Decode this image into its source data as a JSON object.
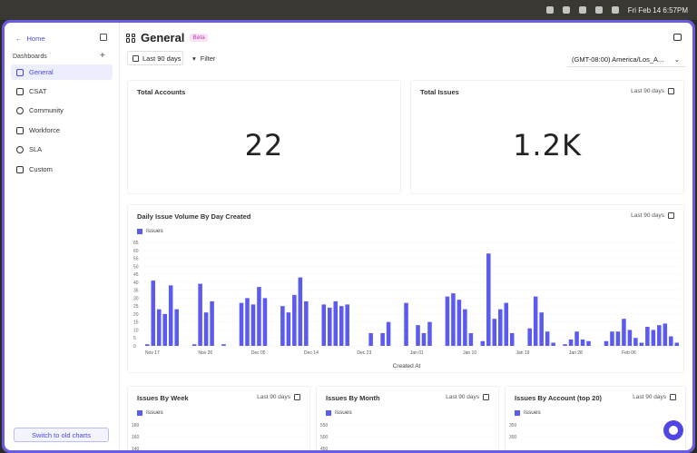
{
  "menubar": {
    "datetime": "Fri Feb 14  6:57PM"
  },
  "sidebar": {
    "home": "Home",
    "dashboards": "Dashboards",
    "items": [
      {
        "label": "General"
      },
      {
        "label": "CSAT"
      },
      {
        "label": "Community"
      },
      {
        "label": "Workforce"
      },
      {
        "label": "SLA"
      },
      {
        "label": "Custom"
      }
    ],
    "switch": "Switch to old charts"
  },
  "header": {
    "title": "General",
    "badge": "Beta",
    "date_range": "Last 90 days",
    "filter": "Filter",
    "timezone": "(GMT-08:00) America/Los_A..."
  },
  "cards": {
    "accounts": {
      "title": "Total Accounts",
      "value": "22"
    },
    "issues": {
      "title": "Total Issues",
      "value": "1.2K",
      "range": "Last 90 days"
    }
  },
  "colors": {
    "accent": "#5b5bf0",
    "window": "#6a5ce0"
  },
  "chart_data": [
    {
      "type": "bar",
      "title": "Daily Issue Volume By Day Created",
      "range": "Last 90 days",
      "legend": "Issues",
      "xlabel": "Created At",
      "ylim": [
        0,
        65
      ],
      "yticks": [
        0,
        5,
        10,
        15,
        20,
        25,
        30,
        35,
        40,
        45,
        50,
        55,
        60,
        65
      ],
      "xticks": [
        "Nov 17",
        "Nov 26",
        "Dec 05",
        "Dec 14",
        "Dec 23",
        "Jan 01",
        "Jan 10",
        "Jan 19",
        "Jan 28",
        "Feb 06"
      ],
      "values": [
        1,
        41,
        23,
        20,
        38,
        23,
        0,
        0,
        1,
        39,
        21,
        28,
        0,
        1,
        0,
        0,
        27,
        30,
        26,
        37,
        30,
        0,
        0,
        25,
        21,
        32,
        43,
        28,
        0,
        0,
        26,
        24,
        28,
        25,
        26,
        0,
        0,
        0,
        8,
        0,
        8,
        15,
        0,
        0,
        27,
        0,
        13,
        8,
        15,
        0,
        0,
        31,
        33,
        29,
        23,
        8,
        0,
        3,
        58,
        17,
        23,
        27,
        8,
        0,
        0,
        11,
        31,
        21,
        9,
        2,
        0,
        1,
        4,
        9,
        4,
        3,
        0,
        0,
        3,
        9,
        9,
        17,
        10,
        5,
        2,
        12,
        10,
        13,
        14,
        6,
        2
      ]
    },
    {
      "type": "bar",
      "title": "Issues By Week",
      "range": "Last 90 days",
      "legend": "Issues",
      "yticks": [
        "180",
        "160",
        "140"
      ]
    },
    {
      "type": "bar",
      "title": "Issues By Month",
      "range": "Last 90 days",
      "legend": "Issues",
      "yticks": [
        "550",
        "500",
        "450"
      ]
    },
    {
      "type": "bar",
      "title": "Issues By Account (top 20)",
      "range": "Last 90 days",
      "legend": "Issues",
      "yticks": [
        "350",
        "300"
      ]
    }
  ]
}
